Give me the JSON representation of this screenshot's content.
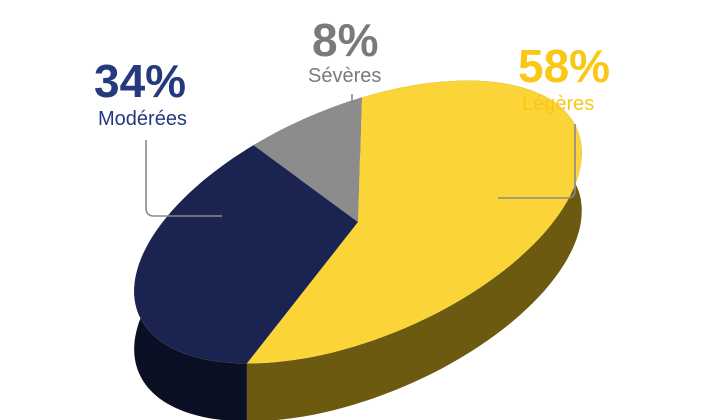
{
  "chart_data": {
    "type": "pie",
    "title": "",
    "slices": [
      {
        "label": "Légères",
        "value": 58,
        "display": "58%",
        "color": "#fbd437",
        "side_color": "#6b5a10",
        "text_color": "#fbc716"
      },
      {
        "label": "Modérées",
        "value": 34,
        "display": "34%",
        "color": "#1b2450",
        "side_color": "#0b0f24",
        "text_color": "#253a7c"
      },
      {
        "label": "Sévères",
        "value": 8,
        "display": "8%",
        "color": "#8c8c8c",
        "side_color": "#555555",
        "text_color": "#7a7a7a"
      }
    ],
    "style": "3d-tilted",
    "leader_line_color": "#8a8a8a"
  }
}
